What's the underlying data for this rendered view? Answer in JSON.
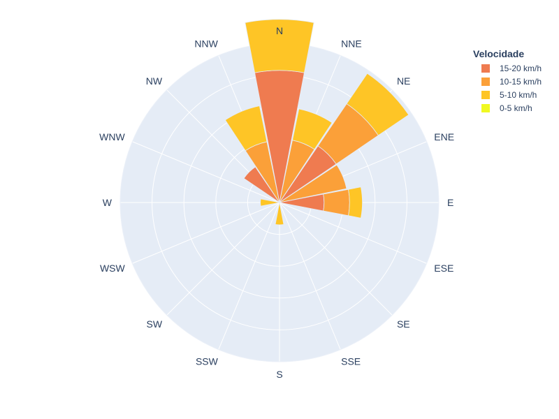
{
  "chart_data": {
    "type": "barpolar",
    "directions": [
      "N",
      "NNE",
      "NE",
      "ENE",
      "E",
      "ESE",
      "SE",
      "SSE",
      "S",
      "SSW",
      "SW",
      "WSW",
      "W",
      "WNW",
      "NW",
      "NNW"
    ],
    "radial_range": [
      0,
      5
    ],
    "legend": {
      "title": "Velocidade",
      "placement": "top-right"
    },
    "series": [
      {
        "name": "15-20 km/h",
        "color": "#ef7b50",
        "values": [
          4.15,
          0.0,
          2.15,
          0.0,
          1.4,
          0.0,
          0.0,
          0.0,
          0.0,
          0.0,
          0.0,
          0.0,
          0.0,
          0.0,
          1.35,
          0.0
        ]
      },
      {
        "name": "10-15 km/h",
        "color": "#fba039",
        "values": [
          0.0,
          2.0,
          1.6,
          2.15,
          0.8,
          0.0,
          0.0,
          0.0,
          0.0,
          0.0,
          0.0,
          0.0,
          0.0,
          0.0,
          0.0,
          1.95
        ]
      },
      {
        "name": "5-10 km/h",
        "color": "#fec526",
        "values": [
          1.6,
          1.0,
          1.15,
          0.0,
          0.4,
          0.0,
          0.0,
          0.0,
          0.7,
          0.0,
          0.0,
          0.0,
          0.6,
          0.0,
          0.0,
          1.15
        ]
      },
      {
        "name": "0-5 km/h",
        "color": "#f0f921",
        "values": [
          0.0,
          0.0,
          0.0,
          0.0,
          0.0,
          0.0,
          0.0,
          0.0,
          0.0,
          0.0,
          0.0,
          0.0,
          0.0,
          0.0,
          0.0,
          0.0
        ]
      }
    ]
  }
}
